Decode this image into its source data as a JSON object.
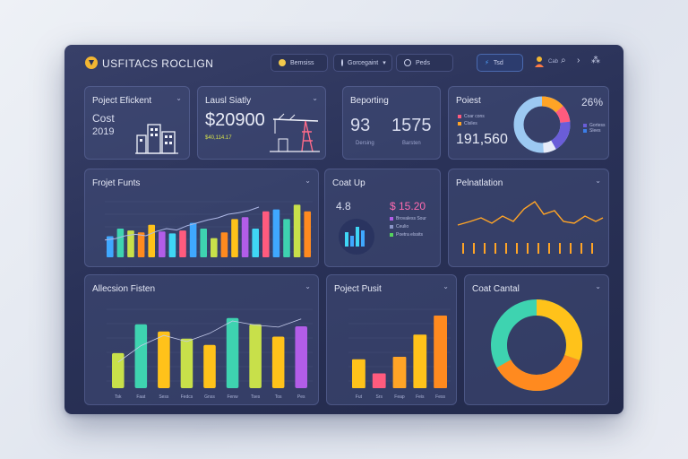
{
  "app": {
    "title": "USFITACS ROCLIGN"
  },
  "topbar": {
    "pill1": "Bemsiss",
    "pill2": "Gorcegaint",
    "pill3": "Peds",
    "pill4": "Tsd",
    "user_text": "Cab"
  },
  "cards": {
    "project_efficiency": {
      "title": "Poject Efickent",
      "label": "Cost",
      "value": "2019"
    },
    "last_study": {
      "title": "Lausl Siatly",
      "value": "$20900",
      "sub": "$40,114.17"
    },
    "reporting": {
      "title": "Beporting",
      "value_a": "93",
      "value_b": "1575",
      "sub_a": "Dersing",
      "sub_b": "Barsten"
    },
    "project_pie": {
      "title": "Poiest",
      "percent": "26%",
      "value": "191,560",
      "legend": [
        "Coar cons",
        "Clsiles",
        "Gortess",
        "Slees"
      ],
      "colors": [
        "#ff5b7e",
        "#ffa426",
        "#6a5dd8",
        "#3b7ee8"
      ]
    },
    "project_funds": {
      "title": "Frojet Funts",
      "chart_data": {
        "type": "bar",
        "values": [
          22,
          30,
          28,
          26,
          34,
          27,
          25,
          28,
          36,
          30,
          20,
          26,
          40,
          42,
          30,
          48,
          50,
          40,
          55,
          48
        ],
        "line": [
          24,
          26,
          30,
          32,
          30,
          36,
          40,
          38,
          44,
          48,
          52,
          55,
          60,
          62,
          65,
          70
        ]
      }
    },
    "cost_up": {
      "title": "Coat Up",
      "value_a": "4.8",
      "value_b": "$ 15.20",
      "legend": [
        "Brovaless Sour",
        "Ceulio",
        "Poetra elssits"
      ],
      "colors": [
        "#b25de8",
        "#8a95c8",
        "#55d35e"
      ]
    },
    "reliability": {
      "title": "Pelnatlation"
    },
    "allocation": {
      "title": "Allecsion Fisten",
      "chart_data": {
        "type": "bar",
        "categories": [
          "Tsk",
          "Faat",
          "Sess",
          "Fedcs",
          "Gnss",
          "Fenw",
          "Tses",
          "Tos",
          "Pes"
        ],
        "values": [
          34,
          62,
          55,
          48,
          42,
          68,
          62,
          50,
          60
        ]
      }
    },
    "project_posts": {
      "title": "Poject Pusit",
      "chart_data": {
        "type": "bar",
        "categories": [
          "Fut",
          "Srs",
          "Feap",
          "Feis",
          "Fess"
        ],
        "values": [
          35,
          18,
          38,
          65,
          88
        ]
      }
    },
    "cost_control": {
      "title": "Coat Cantal"
    }
  }
}
